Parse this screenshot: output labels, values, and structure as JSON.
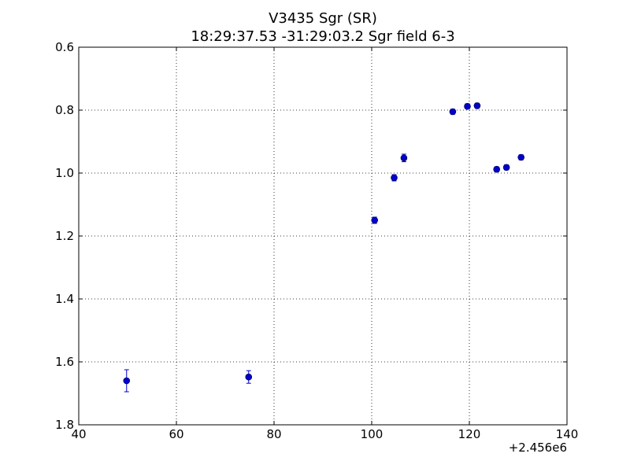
{
  "chart_data": {
    "type": "scatter",
    "title": "V3435 Sgr  (SR)",
    "subtitle": "18:29:37.53 -31:29:03.2 Sgr field 6-3",
    "xlabel": "",
    "ylabel": "",
    "x_offset_label": "+2.456e6",
    "xlim": [
      40,
      140
    ],
    "ylim": [
      0.6,
      1.8
    ],
    "y_inverted": true,
    "grid": true,
    "x_ticks": [
      40,
      60,
      80,
      100,
      120,
      140
    ],
    "x_tick_labels": [
      "40",
      "60",
      "80",
      "100",
      "120",
      "140"
    ],
    "y_ticks": [
      0.6,
      0.8,
      1.0,
      1.2,
      1.4,
      1.6,
      1.8
    ],
    "y_tick_labels": [
      "0.6",
      "0.8",
      "1.0",
      "1.2",
      "1.4",
      "1.6",
      "1.8"
    ],
    "marker_color": "#0000cc",
    "errorbar_color": "#0000cc",
    "series": [
      {
        "points": [
          {
            "x": 49.8,
            "y": 1.66,
            "err": 0.035
          },
          {
            "x": 74.8,
            "y": 1.648,
            "err": 0.02
          },
          {
            "x": 100.6,
            "y": 1.15,
            "err": 0.01
          },
          {
            "x": 104.6,
            "y": 1.015,
            "err": 0.01
          },
          {
            "x": 106.6,
            "y": 0.952,
            "err": 0.012
          },
          {
            "x": 116.6,
            "y": 0.805,
            "err": 0.008
          },
          {
            "x": 119.6,
            "y": 0.788,
            "err": 0.008
          },
          {
            "x": 121.6,
            "y": 0.786,
            "err": 0.008
          },
          {
            "x": 125.6,
            "y": 0.988,
            "err": 0.008
          },
          {
            "x": 127.6,
            "y": 0.982,
            "err": 0.008
          },
          {
            "x": 130.6,
            "y": 0.95,
            "err": 0.008
          }
        ]
      }
    ]
  }
}
